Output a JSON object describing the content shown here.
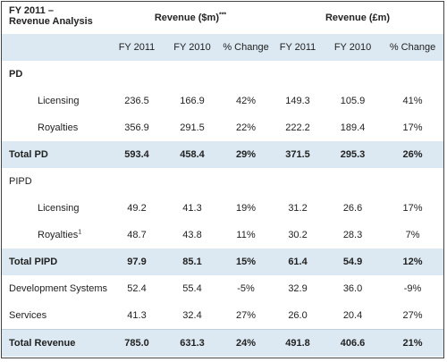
{
  "header": {
    "title_line1": "FY 2011 –",
    "title_line2": "Revenue Analysis",
    "usd_group": "Revenue ($m)",
    "usd_group_sup": "***",
    "gbp_group": "Revenue (£m)",
    "columns": [
      "FY 2011",
      "FY 2010",
      "% Change",
      "FY 2011",
      "FY 2010",
      "% Change"
    ]
  },
  "rows": [
    {
      "label": "PD",
      "kind": "section",
      "values": [
        "",
        "",
        "",
        "",
        "",
        ""
      ]
    },
    {
      "label": "Licensing",
      "kind": "indent",
      "values": [
        "236.5",
        "166.9",
        "42%",
        "149.3",
        "105.9",
        "41%"
      ]
    },
    {
      "label": "Royalties",
      "kind": "indent",
      "values": [
        "356.9",
        "291.5",
        "22%",
        "222.2",
        "189.4",
        "17%"
      ]
    },
    {
      "label": "Total PD",
      "kind": "total",
      "values": [
        "593.4",
        "458.4",
        "29%",
        "371.5",
        "295.3",
        "26%"
      ]
    },
    {
      "label": "PIPD",
      "kind": "plain",
      "values": [
        "",
        "",
        "",
        "",
        "",
        ""
      ]
    },
    {
      "label": "Licensing",
      "kind": "indent",
      "values": [
        "49.2",
        "41.3",
        "19%",
        "31.2",
        "26.6",
        "17%"
      ]
    },
    {
      "label": "Royalties",
      "sup": "1",
      "kind": "indent",
      "values": [
        "48.7",
        "43.8",
        "11%",
        "30.2",
        "28.3",
        "7%"
      ]
    },
    {
      "label": "Total PIPD",
      "kind": "total",
      "values": [
        "97.9",
        "85.1",
        "15%",
        "61.4",
        "54.9",
        "12%"
      ]
    },
    {
      "label": "Development Systems",
      "kind": "plain",
      "values": [
        "52.4",
        "55.4",
        "-5%",
        "32.9",
        "36.0",
        "-9%"
      ]
    },
    {
      "label": "Services",
      "kind": "plain",
      "values": [
        "41.3",
        "32.4",
        "27%",
        "26.0",
        "20.4",
        "27%"
      ]
    },
    {
      "label": "Total Revenue",
      "kind": "grand",
      "values": [
        "785.0",
        "631.3",
        "24%",
        "491.8",
        "406.6",
        "21%"
      ]
    }
  ]
}
